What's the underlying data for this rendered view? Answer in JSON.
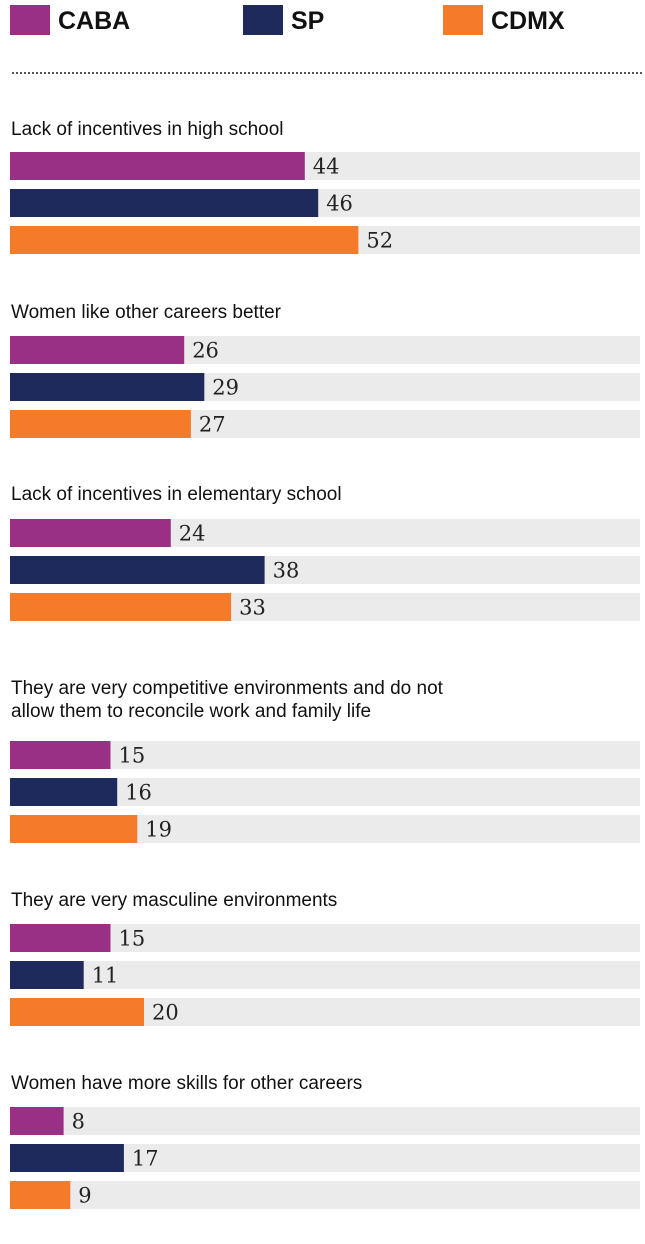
{
  "chart_data": {
    "type": "bar",
    "orientation": "horizontal",
    "xlim": [
      0,
      100
    ],
    "series": [
      {
        "name": "CABA",
        "color": "#9a2f86",
        "values": [
          44,
          26,
          24,
          15,
          15,
          8
        ]
      },
      {
        "name": "SP",
        "color": "#1f2a5c",
        "values": [
          46,
          29,
          38,
          16,
          11,
          17
        ]
      },
      {
        "name": "CDMX",
        "color": "#f47b2a",
        "values": [
          52,
          27,
          33,
          19,
          20,
          9
        ]
      }
    ],
    "categories": [
      [
        "Lack of incentives in high school"
      ],
      [
        "Women like other careers better"
      ],
      [
        "Lack of incentives in elementary school"
      ],
      [
        "They are very competitive environments and do not",
        "allow them to reconcile work and family life"
      ],
      [
        "They are very masculine environments"
      ],
      [
        "Women have more skills for other careers"
      ]
    ],
    "track_color": "#ebebeb",
    "grid": false,
    "legend": "top"
  }
}
